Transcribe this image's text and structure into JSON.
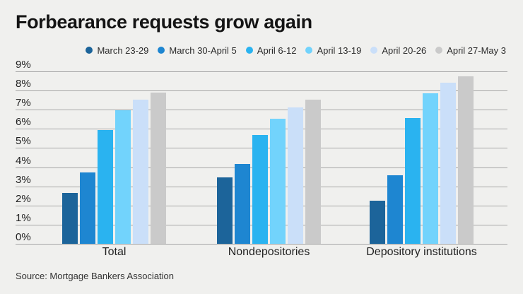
{
  "title": "Forbearance requests grow again",
  "source": "Source: Mortgage Bankers Association",
  "colors": {
    "background": "#f0f0ee",
    "grid": "#a6a6a6",
    "title_text": "#141414",
    "axis_text": "#222222",
    "legend_text": "#2b2b2b",
    "series": [
      "#1c649a",
      "#1e86d1",
      "#2ab3f0",
      "#72d3fc",
      "#cadff9",
      "#cacaca"
    ]
  },
  "chart_data": {
    "type": "bar",
    "title": "Forbearance requests grow again",
    "categories": [
      "Total",
      "Nondepositories",
      "Depository institutions"
    ],
    "series": [
      {
        "name": "March 23-29",
        "color": "#1c649a",
        "values": [
          2.66,
          3.45,
          2.24
        ]
      },
      {
        "name": "March 30-April 5",
        "color": "#1e86d1",
        "values": [
          3.74,
          4.17,
          3.57
        ]
      },
      {
        "name": "April 6-12",
        "color": "#2ab3f0",
        "values": [
          5.95,
          5.69,
          6.57
        ]
      },
      {
        "name": "April 13-19",
        "color": "#72d3fc",
        "values": [
          6.99,
          6.52,
          7.87
        ]
      },
      {
        "name": "April 20-26",
        "color": "#cadff9",
        "values": [
          7.54,
          7.13,
          8.41
        ]
      },
      {
        "name": "April 27-May 3",
        "color": "#cacaca",
        "values": [
          7.91,
          7.54,
          8.75
        ]
      }
    ],
    "xlabel": "",
    "ylabel": "",
    "ylim": [
      0,
      9
    ],
    "y_ticks": [
      "9%",
      "8%",
      "7%",
      "6%",
      "5%",
      "4%",
      "3%",
      "2%",
      "1%",
      "0%"
    ],
    "grid": true,
    "legend_position": "top"
  }
}
